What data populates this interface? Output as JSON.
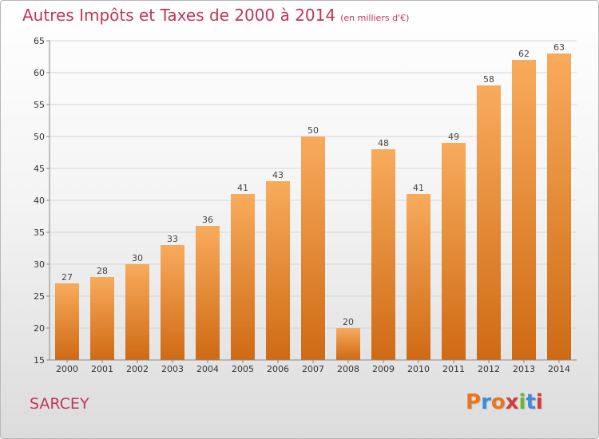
{
  "title": "Autres Impôts et Taxes de 2000 à 2014",
  "subtitle": "(en milliers d'€)",
  "commune": "SARCEY",
  "logo": {
    "letters": [
      "P",
      "r",
      "o",
      "x",
      "i",
      "t",
      "i"
    ],
    "colors": [
      "#e8761e",
      "#3a8fd8",
      "#e8761e",
      "#d33b3b",
      "#6bb52f",
      "#3a8fd8",
      "#d33b3b"
    ]
  },
  "colors": {
    "bar_light": "#f8ab5c",
    "bar_dark": "#cf6a14",
    "title": "#c0365a"
  },
  "chart_data": {
    "type": "bar",
    "title": "Autres Impôts et Taxes de 2000 à 2014",
    "subtitle": "(en milliers d'€)",
    "categories": [
      "2000",
      "2001",
      "2002",
      "2003",
      "2004",
      "2005",
      "2006",
      "2007",
      "2008",
      "2009",
      "2010",
      "2011",
      "2012",
      "2013",
      "2014"
    ],
    "values": [
      27,
      28,
      30,
      33,
      36,
      41,
      43,
      50,
      20,
      48,
      41,
      49,
      58,
      62,
      63
    ],
    "ylim": [
      15,
      65
    ],
    "yticks": [
      15,
      20,
      25,
      30,
      35,
      40,
      45,
      50,
      55,
      60,
      65
    ],
    "grid": "horizontal",
    "xlabel": "",
    "ylabel": ""
  }
}
